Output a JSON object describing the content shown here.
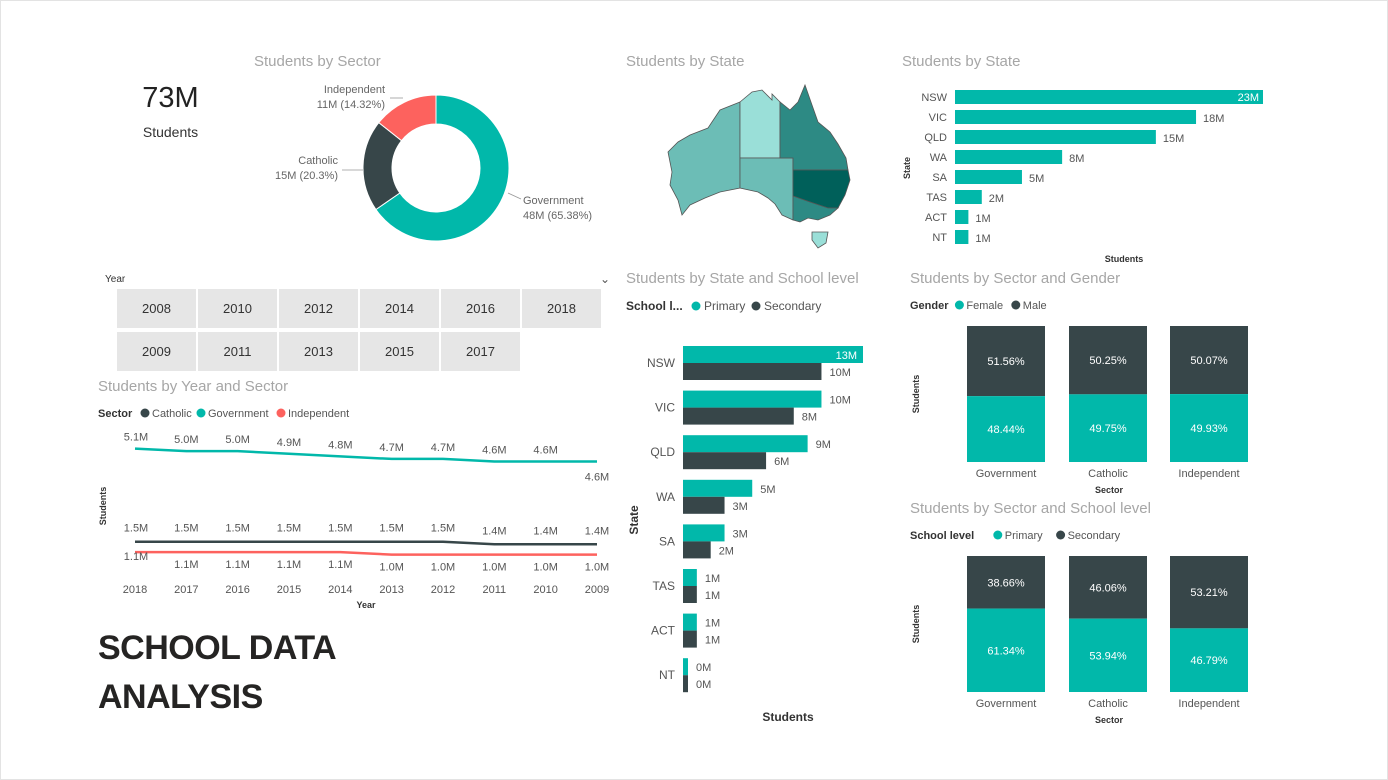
{
  "kpi": {
    "value": "73M",
    "label": "Students"
  },
  "titles": {
    "sector_donut": "Students by Sector",
    "state_map": "Students by State",
    "state_bar": "Students by State",
    "state_school_level": "Students by State and School level",
    "sector_gender": "Students by Sector and Gender",
    "year_sector": "Students by Year and Sector",
    "sector_school_level": "Students by Sector and School level"
  },
  "slicer": {
    "title": "Year",
    "row1": [
      "2008",
      "2010",
      "2012",
      "2014",
      "2016",
      "2018"
    ],
    "row2": [
      "2009",
      "2011",
      "2013",
      "2015",
      "2017"
    ]
  },
  "report_title": {
    "line1": "SCHOOL DATA",
    "line2": "ANALYSIS"
  },
  "colors": {
    "teal": "#01b8aa",
    "dark": "#374649",
    "coral": "#fd625e"
  },
  "chart_data": [
    {
      "id": "donut",
      "type": "pie",
      "title": "Students by Sector",
      "slices": [
        {
          "name": "Government",
          "label1": "Government",
          "label2": "48M (65.38%)",
          "pct": 65.38,
          "color": "#01b8aa"
        },
        {
          "name": "Catholic",
          "label1": "Catholic",
          "label2": "15M (20.3%)",
          "pct": 20.3,
          "color": "#374649"
        },
        {
          "name": "Independent",
          "label1": "Independent",
          "label2": "11M (14.32%)",
          "pct": 14.32,
          "color": "#fd625e"
        }
      ]
    },
    {
      "id": "state_bar",
      "type": "bar",
      "title": "Students by State",
      "xlabel": "Students",
      "ylabel": "State",
      "categories": [
        "NSW",
        "VIC",
        "QLD",
        "WA",
        "SA",
        "TAS",
        "ACT",
        "NT"
      ],
      "values": [
        23,
        18,
        15,
        8,
        5,
        2,
        1,
        1
      ],
      "labels": [
        "23M",
        "18M",
        "15M",
        "8M",
        "5M",
        "2M",
        "1M",
        "1M"
      ],
      "xlim": [
        0,
        23
      ]
    },
    {
      "id": "state_level",
      "type": "bar",
      "title": "Students by State and School level",
      "legend_title": "School l...",
      "xlabel": "Students",
      "ylabel": "State",
      "categories": [
        "NSW",
        "VIC",
        "QLD",
        "WA",
        "SA",
        "TAS",
        "ACT",
        "NT"
      ],
      "series": [
        {
          "name": "Primary",
          "values": [
            13,
            10,
            9,
            5,
            3,
            1,
            1,
            0.3
          ],
          "labels": [
            "13M",
            "10M",
            "9M",
            "5M",
            "3M",
            "1M",
            "1M",
            "0M"
          ]
        },
        {
          "name": "Secondary",
          "values": [
            10,
            8,
            6,
            3,
            2,
            1,
            1,
            0.3
          ],
          "labels": [
            "10M",
            "8M",
            "6M",
            "3M",
            "2M",
            "1M",
            "1M",
            "0M"
          ]
        }
      ],
      "xlim": [
        0,
        13
      ]
    },
    {
      "id": "sector_gender",
      "type": "bar",
      "title": "Students by Sector and Gender",
      "legend_title": "Gender",
      "xlabel": "Sector",
      "ylabel": "Students",
      "categories": [
        "Government",
        "Catholic",
        "Independent"
      ],
      "series": [
        {
          "name": "Female",
          "values": [
            48.44,
            49.75,
            49.93
          ],
          "labels": [
            "48.44%",
            "49.75%",
            "49.93%"
          ]
        },
        {
          "name": "Male",
          "values": [
            51.56,
            50.25,
            50.07
          ],
          "labels": [
            "51.56%",
            "50.25%",
            "50.07%"
          ]
        }
      ]
    },
    {
      "id": "sector_level",
      "type": "bar",
      "title": "Students by Sector and School level",
      "legend_title": "School level",
      "xlabel": "Sector",
      "ylabel": "Students",
      "categories": [
        "Government",
        "Catholic",
        "Independent"
      ],
      "series": [
        {
          "name": "Primary",
          "values": [
            61.34,
            53.94,
            46.79
          ],
          "labels": [
            "61.34%",
            "53.94%",
            "46.79%"
          ]
        },
        {
          "name": "Secondary",
          "values": [
            38.66,
            46.06,
            53.21
          ],
          "labels": [
            "38.66%",
            "46.06%",
            "53.21%"
          ]
        }
      ]
    },
    {
      "id": "year_sector",
      "type": "line",
      "title": "Students by Year and Sector",
      "legend_title": "Sector",
      "xlabel": "Year",
      "ylabel": "Students",
      "x": [
        "2018",
        "2017",
        "2016",
        "2015",
        "2014",
        "2013",
        "2012",
        "2011",
        "2010",
        "2009"
      ],
      "series": [
        {
          "name": "Catholic",
          "values": [
            1.5,
            1.5,
            1.5,
            1.5,
            1.5,
            1.5,
            1.5,
            1.4,
            1.4,
            1.4
          ],
          "labels": [
            "1.5M",
            "1.5M",
            "1.5M",
            "1.5M",
            "1.5M",
            "1.5M",
            "1.5M",
            "1.4M",
            "1.4M",
            "1.4M"
          ]
        },
        {
          "name": "Government",
          "values": [
            5.1,
            5.0,
            5.0,
            4.9,
            4.8,
            4.7,
            4.7,
            4.6,
            4.6,
            4.6
          ],
          "labels": [
            "5.1M",
            "5.0M",
            "5.0M",
            "4.9M",
            "4.8M",
            "4.7M",
            "4.7M",
            "4.6M",
            "4.6M",
            "4.6M"
          ]
        },
        {
          "name": "Independent",
          "values": [
            1.1,
            1.1,
            1.1,
            1.1,
            1.1,
            1.0,
            1.0,
            1.0,
            1.0,
            1.0
          ],
          "labels": [
            "1.1M",
            "1.1M",
            "1.1M",
            "1.1M",
            "1.1M",
            "1.0M",
            "1.0M",
            "1.0M",
            "1.0M",
            "1.0M"
          ]
        }
      ]
    },
    {
      "id": "state_map",
      "type": "map",
      "title": "Students by State",
      "regions": [
        {
          "name": "WA",
          "value": 8
        },
        {
          "name": "NT",
          "value": 1
        },
        {
          "name": "SA",
          "value": 5
        },
        {
          "name": "QLD",
          "value": 15
        },
        {
          "name": "NSW",
          "value": 23
        },
        {
          "name": "VIC",
          "value": 18
        },
        {
          "name": "TAS",
          "value": 2
        }
      ]
    }
  ]
}
